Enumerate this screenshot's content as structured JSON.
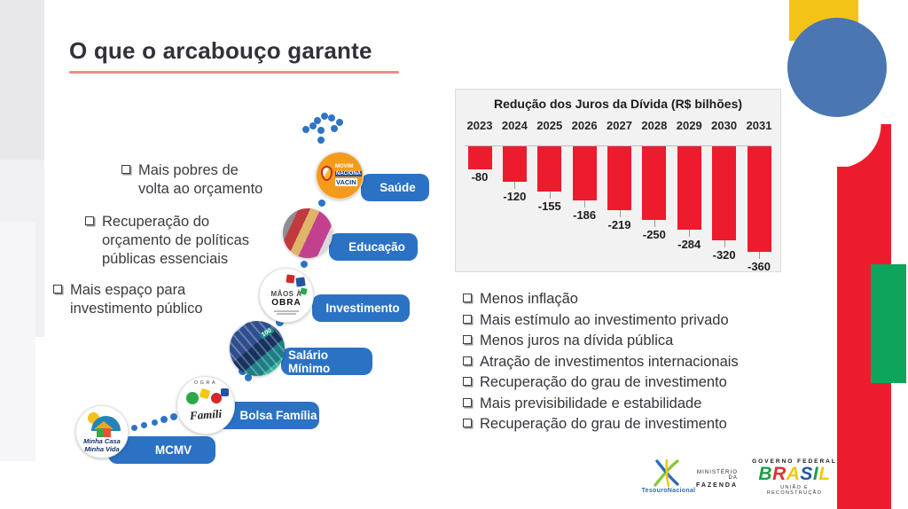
{
  "title": "O que o arcabouço garante",
  "left_bullets": [
    "Mais pobres de volta ao orçamento",
    "Recuperação do orçamento de políticas públicas essenciais",
    "Mais espaço para investimento público"
  ],
  "right_bullets": [
    "Menos inflação",
    "Mais estímulo ao investimento privado",
    "Menos juros na dívida pública",
    "Atração de investimentos internacionais",
    "Recuperação do grau de investimento",
    "Mais previsibilidade e estabilidade",
    "Recuperação do grau de investimento"
  ],
  "staircase": [
    {
      "label": "MCMV",
      "icon": "minha-casa-minha-vida-logo",
      "icon_text": [
        "Minha Casa",
        "Minha Vida"
      ]
    },
    {
      "label": "Bolsa Família",
      "icon": "bolsa-familia-logo",
      "icon_text": [
        "OGRA",
        "Famíli"
      ]
    },
    {
      "label": "Salário Mínimo",
      "icon": "banknotes-photo",
      "icon_text": [
        "100"
      ]
    },
    {
      "label": "Investimento",
      "icon": "maos-a-obra-logo",
      "icon_text": [
        "MÃOS À",
        "OBRA"
      ]
    },
    {
      "label": "Educação",
      "icon": "classroom-photo",
      "icon_text": []
    },
    {
      "label": "Saúde",
      "icon": "movimento-nacional-vacinacao-logo",
      "icon_text": [
        "MOVIM",
        "NACIONA",
        "VACIN"
      ]
    }
  ],
  "chart_data": {
    "type": "bar",
    "title": "Redução dos Juros da Dívida (R$ bilhões)",
    "categories": [
      "2023",
      "2024",
      "2025",
      "2026",
      "2027",
      "2028",
      "2029",
      "2030",
      "2031"
    ],
    "values": [
      -80,
      -120,
      -155,
      -186,
      -219,
      -250,
      -284,
      -320,
      -360
    ],
    "xlabel": "",
    "ylabel": "",
    "ylim": [
      -400,
      0
    ],
    "grid": false,
    "legend": false,
    "value_labels": true,
    "bar_color": "#EC1B2D"
  },
  "footer": {
    "tesouro": "TesouroNacional",
    "ministerio": [
      "MINISTÉRIO DA",
      "FAZENDA"
    ],
    "governo_top": "GOVERNO FEDERAL",
    "brasil": "BRASIL",
    "governo_bottom": "UNIÃO E RECONSTRUÇÃO"
  },
  "colors": {
    "pill_blue": "#2B72C4",
    "dot_blue": "#2E74C6",
    "bar_red": "#EC1B2D",
    "title_underline": "#EE8D86",
    "decor_yellow": "#F3C317",
    "decor_blue": "#4A76B2",
    "decor_red": "#EC1B2D",
    "decor_green": "#0FA45C"
  }
}
